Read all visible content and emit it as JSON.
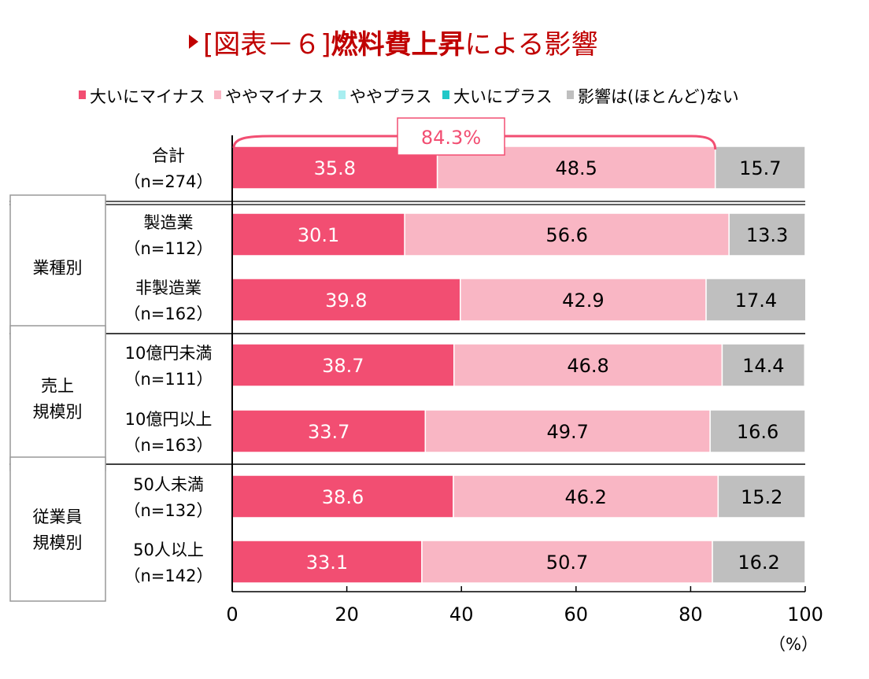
{
  "chart_data": {
    "type": "bar",
    "stacked": true,
    "orientation": "horizontal",
    "title_prefix": "[図表－６]",
    "title_main": "燃料費上昇",
    "title_suffix": "による影響",
    "legend": [
      {
        "name": "大いにマイナス",
        "color": "#f24e72"
      },
      {
        "name": "ややマイナス",
        "color": "#f9b6c4"
      },
      {
        "name": "ややプラス",
        "color": "#a8eef0"
      },
      {
        "name": "大いにプラス",
        "color": "#20c8c8"
      },
      {
        "name": "影響は(ほとんど)ない",
        "color": "#bfbfbf"
      }
    ],
    "groups": [
      {
        "label": "",
        "rows": [
          0
        ]
      },
      {
        "label": "業種別",
        "rows": [
          1,
          2
        ]
      },
      {
        "label": "売上\n規模別",
        "rows": [
          3,
          4
        ]
      },
      {
        "label": "従業員\n規模別",
        "rows": [
          5,
          6
        ]
      }
    ],
    "categories": [
      {
        "name": "合計",
        "n": "（n=274）"
      },
      {
        "name": "製造業",
        "n": "（n=112）"
      },
      {
        "name": "非製造業",
        "n": "（n=162）"
      },
      {
        "name": "10億円未満",
        "n": "（n=111）"
      },
      {
        "name": "10億円以上",
        "n": "（n=163）"
      },
      {
        "name": "50人未満",
        "n": "（n=132）"
      },
      {
        "name": "50人以上",
        "n": "（n=142）"
      }
    ],
    "series": [
      {
        "name": "大いにマイナス",
        "values": [
          35.8,
          30.1,
          39.8,
          38.7,
          33.7,
          38.6,
          33.1
        ]
      },
      {
        "name": "ややマイナス",
        "values": [
          48.5,
          56.6,
          42.9,
          46.8,
          49.7,
          46.2,
          50.7
        ]
      },
      {
        "name": "ややプラス",
        "values": [
          0,
          0,
          0,
          0,
          0,
          0,
          0
        ]
      },
      {
        "name": "大いにプラス",
        "values": [
          0,
          0,
          0,
          0,
          0,
          0,
          0
        ]
      },
      {
        "name": "影響は(ほとんど)ない",
        "values": [
          15.7,
          13.3,
          17.4,
          14.4,
          16.6,
          15.2,
          16.2
        ]
      }
    ],
    "annotation": "84.3%",
    "xticks": [
      "0",
      "20",
      "40",
      "60",
      "80",
      "100"
    ],
    "xlim": [
      0,
      100
    ],
    "xlabel": "（%）",
    "title_color": "#c00000"
  }
}
